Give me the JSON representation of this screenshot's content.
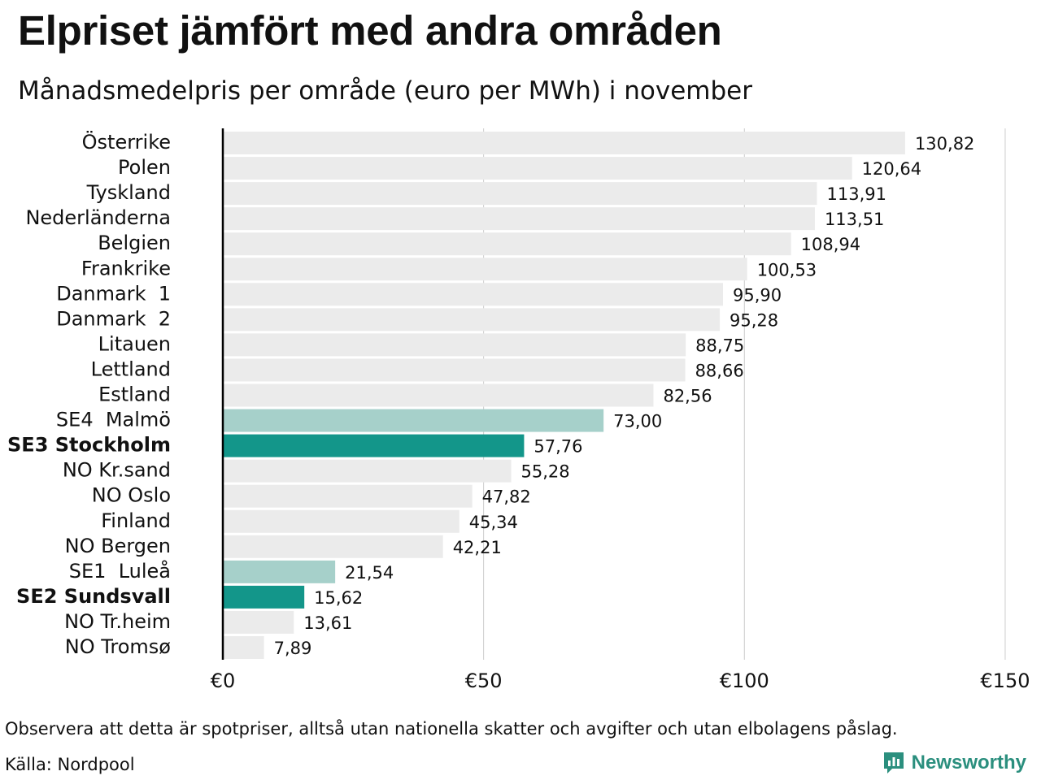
{
  "title": "Elpriset jämfört med andra områden",
  "subtitle": "Månadsmedelpris per område (euro per MWh) i november",
  "footnote": "Observera att detta är spotpriser, alltså utan nationella skatter och avgifter och utan elbolagens påslag.",
  "source": "Källa: Nordpool",
  "brand": {
    "name": "Newsworthy",
    "color": "#2b8f7e",
    "icon": "newsworthy-logo-icon"
  },
  "colors": {
    "default": "#ebebeb",
    "light": "#a6d0ca",
    "dark": "#13968a",
    "axis": "#000000",
    "grid": "#cccccc"
  },
  "chart_data": {
    "type": "bar",
    "orientation": "horizontal",
    "title": "Elpriset jämfört med andra områden",
    "subtitle": "Månadsmedelpris per område (euro per MWh) i november",
    "xlim": [
      0,
      150
    ],
    "x_ticks": [
      0,
      50,
      100,
      150
    ],
    "x_tick_labels": [
      "€0",
      "€50",
      "€100",
      "€150"
    ],
    "grid": true,
    "categories": [
      "Österrike",
      "Polen",
      "Tyskland",
      "Nederländerna",
      "Belgien",
      "Frankrike",
      "Danmark  1",
      "Danmark  2",
      "Litauen",
      "Lettland",
      "Estland",
      "SE4  Malmö",
      "SE3 Stockholm",
      "NO Kr.sand",
      "NO Oslo",
      "Finland",
      "NO Bergen",
      "SE1  Luleå",
      "SE2 Sundsvall",
      "NO Tr.heim",
      "NO Tromsø"
    ],
    "values": [
      130.82,
      120.64,
      113.91,
      113.51,
      108.94,
      100.53,
      95.9,
      95.28,
      88.75,
      88.66,
      82.56,
      73.0,
      57.76,
      55.28,
      47.82,
      45.34,
      42.21,
      21.54,
      15.62,
      13.61,
      7.89
    ],
    "value_labels": [
      "130,82",
      "120,64",
      "113,91",
      "113,51",
      "108,94",
      "100,53",
      "95,90",
      "95,28",
      "88,75",
      "88,66",
      "82,56",
      "73,00",
      "57,76",
      "55,28",
      "47,82",
      "45,34",
      "42,21",
      "21,54",
      "15,62",
      "13,61",
      "7,89"
    ],
    "highlight": [
      "default",
      "default",
      "default",
      "default",
      "default",
      "default",
      "default",
      "default",
      "default",
      "default",
      "default",
      "light",
      "dark",
      "default",
      "default",
      "default",
      "default",
      "light",
      "dark",
      "default",
      "default"
    ],
    "bold_labels": [
      "SE3 Stockholm",
      "SE2 Sundsvall"
    ]
  }
}
